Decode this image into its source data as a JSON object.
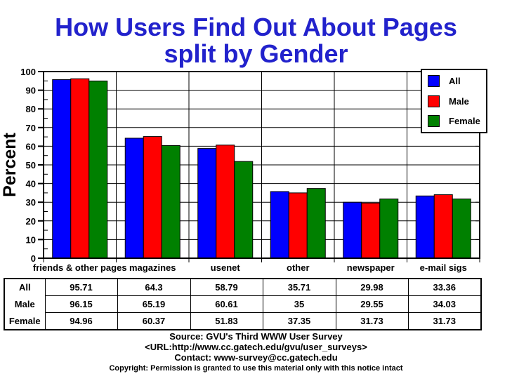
{
  "title": {
    "line1": "How Users Find Out About Pages",
    "line2": "split by Gender"
  },
  "colors": {
    "title": "#2222cc",
    "all": "#0000ff",
    "male": "#ff0000",
    "female": "#008000",
    "axis": "#000000",
    "background": "#ffffff"
  },
  "chart_data": {
    "type": "bar",
    "title": "How Users Find Out About Pages split by Gender",
    "ylabel": "Percent",
    "xlabel": "",
    "ylim": [
      0,
      100
    ],
    "ytick_step": 10,
    "grid": true,
    "legend_position": "top-right",
    "categories": [
      "friends & other pages",
      "magazines",
      "usenet",
      "other",
      "newspaper",
      "e-mail sigs"
    ],
    "series": [
      {
        "name": "All",
        "color": "#0000ff",
        "values": [
          95.71,
          64.3,
          58.79,
          35.71,
          29.98,
          33.36
        ]
      },
      {
        "name": "Male",
        "color": "#ff0000",
        "values": [
          96.15,
          65.19,
          60.61,
          35,
          29.55,
          34.03
        ]
      },
      {
        "name": "Female",
        "color": "#008000",
        "values": [
          94.96,
          60.37,
          51.83,
          37.35,
          31.73,
          31.73
        ]
      }
    ]
  },
  "table": {
    "row_labels": [
      "All",
      "Male",
      "Female"
    ],
    "rows": [
      [
        "95.71",
        "64.3",
        "58.79",
        "35.71",
        "29.98",
        "33.36"
      ],
      [
        "96.15",
        "65.19",
        "60.61",
        "35",
        "29.55",
        "34.03"
      ],
      [
        "94.96",
        "60.37",
        "51.83",
        "37.35",
        "31.73",
        "31.73"
      ]
    ]
  },
  "footer": {
    "source": "Source: GVU's Third WWW User Survey",
    "url": "<URL:http://www.cc.gatech.edu/gvu/user_surveys>",
    "contact": "Contact: www-survey@cc.gatech.edu",
    "copyright": "Copyright: Permission is granted to use this material only with this notice intact"
  }
}
